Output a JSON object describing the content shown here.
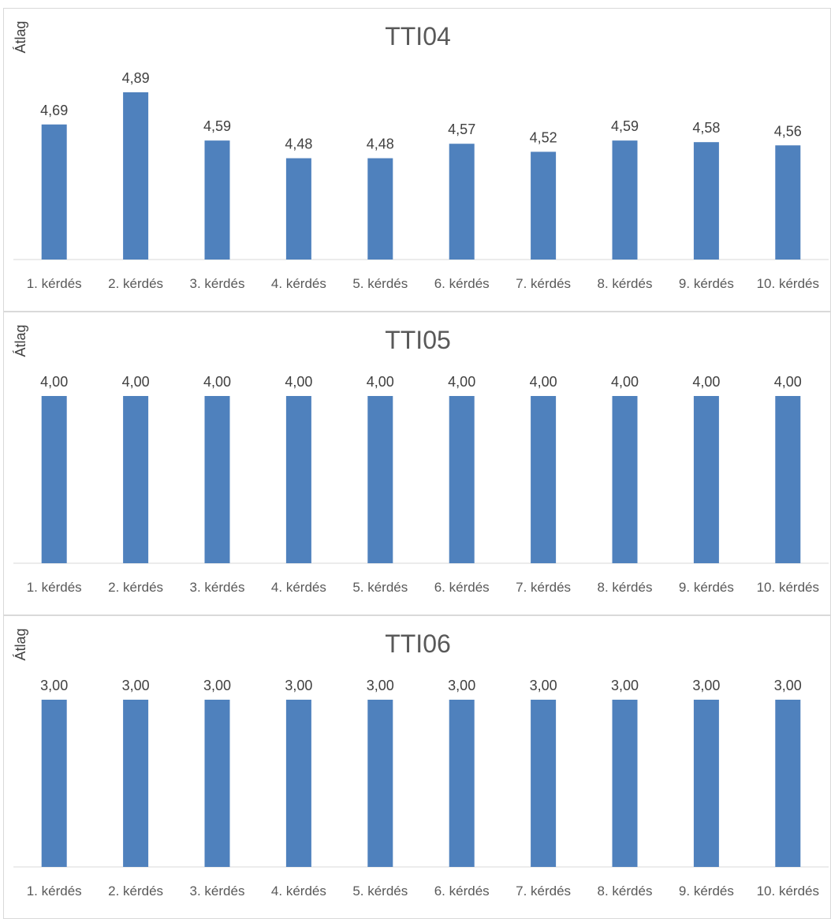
{
  "colors": {
    "bar": "#4f81bd",
    "axis": "#d9d9d9",
    "text": "#404040",
    "title": "#595959"
  },
  "chart_data": [
    {
      "type": "bar",
      "title": "TTI04",
      "ylabel": "Átlag",
      "xlabel": "",
      "categories": [
        "1. kérdés",
        "2. kérdés",
        "3. kérdés",
        "4. kérdés",
        "5. kérdés",
        "6. kérdés",
        "7. kérdés",
        "8. kérdés",
        "9. kérdés",
        "10. kérdés"
      ],
      "values": [
        4.69,
        4.89,
        4.59,
        4.48,
        4.48,
        4.57,
        4.52,
        4.59,
        4.58,
        4.56
      ],
      "labels": [
        "4,69",
        "4,89",
        "4,59",
        "4,48",
        "4,48",
        "4,57",
        "4,52",
        "4,59",
        "4,58",
        "4,56"
      ],
      "ylim": [
        3.85,
        4.89
      ],
      "grid": false,
      "legend": "none"
    },
    {
      "type": "bar",
      "title": "TTI05",
      "ylabel": "Átlag",
      "xlabel": "",
      "categories": [
        "1. kérdés",
        "2. kérdés",
        "3. kérdés",
        "4. kérdés",
        "5. kérdés",
        "6. kérdés",
        "7. kérdés",
        "8. kérdés",
        "9. kérdés",
        "10. kérdés"
      ],
      "values": [
        4,
        4,
        4,
        4,
        4,
        4,
        4,
        4,
        4,
        4
      ],
      "labels": [
        "4,00",
        "4,00",
        "4,00",
        "4,00",
        "4,00",
        "4,00",
        "4,00",
        "4,00",
        "4,00",
        "4,00"
      ],
      "ylim": [
        0,
        4
      ],
      "grid": false,
      "legend": "none"
    },
    {
      "type": "bar",
      "title": "TTI06",
      "ylabel": "Átlag",
      "xlabel": "",
      "categories": [
        "1. kérdés",
        "2. kérdés",
        "3. kérdés",
        "4. kérdés",
        "5. kérdés",
        "6. kérdés",
        "7. kérdés",
        "8. kérdés",
        "9. kérdés",
        "10. kérdés"
      ],
      "values": [
        3,
        3,
        3,
        3,
        3,
        3,
        3,
        3,
        3,
        3
      ],
      "labels": [
        "3,00",
        "3,00",
        "3,00",
        "3,00",
        "3,00",
        "3,00",
        "3,00",
        "3,00",
        "3,00",
        "3,00"
      ],
      "ylim": [
        0,
        3
      ],
      "grid": false,
      "legend": "none"
    }
  ]
}
